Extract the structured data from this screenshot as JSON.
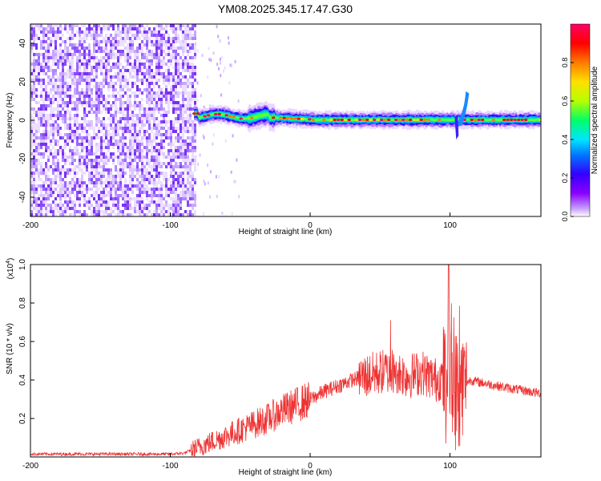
{
  "title": "YM08.2025.345.17.47.G30",
  "chart_data": [
    {
      "type": "heatmap",
      "xlabel": "Height of straight line (km)",
      "ylabel": "Frequency (Hz)",
      "xlim": [
        -200,
        165
      ],
      "ylim": [
        -50,
        50
      ],
      "xticks": [
        -200,
        -100,
        0,
        100
      ],
      "yticks": [
        -40,
        -20,
        0,
        20,
        40
      ],
      "colorbar": {
        "label": "Normalized spectral amplitude",
        "range": [
          0,
          1
        ],
        "ticks": [
          0.0,
          0.2,
          0.4,
          0.6,
          0.8
        ],
        "tick_labels": [
          "0.0",
          "0.2",
          "0.4",
          "0.6",
          "0.8"
        ],
        "colors": [
          "#ffffff",
          "#8a00ff",
          "#3300ff",
          "#0077ff",
          "#00e5ff",
          "#00ff66",
          "#b5ff00",
          "#ffe000",
          "#ff7a00",
          "#ff0000",
          "#ff0066"
        ]
      },
      "regions": [
        {
          "x_range": [
            -200,
            -83
          ],
          "y_range": [
            -50,
            50
          ],
          "amplitude_range": [
            0.0,
            0.15
          ],
          "description_color": "#8a40ff"
        },
        {
          "x_range": [
            -83,
            165
          ],
          "center_frequency_hz": 0,
          "bandwidth_hz": 8,
          "amplitude_range": [
            0.3,
            1.0
          ]
        }
      ]
    },
    {
      "type": "line",
      "xlabel": "Height of straight line (km)",
      "ylabel": "SNR (10 * v/v)",
      "y_multiplier_label": "(x10",
      "y_multiplier_exp": "4",
      "y_multiplier_close": ")",
      "xlim": [
        -200,
        165
      ],
      "ylim": [
        0,
        1.0
      ],
      "xticks": [
        -200,
        -100,
        0,
        100
      ],
      "yticks": [
        0.2,
        0.4,
        0.6,
        0.8,
        1.0
      ],
      "line_color": "#ee3333",
      "series": [
        {
          "x": [
            -200,
            -150,
            -100,
            -90,
            -80,
            -70,
            -60,
            -50,
            -40,
            -30,
            -20,
            -10,
            0,
            10,
            20,
            30,
            35,
            40,
            50,
            60,
            70,
            80,
            90,
            95,
            100,
            105,
            110,
            115,
            120,
            140,
            165
          ],
          "values": [
            0.015,
            0.015,
            0.015,
            0.02,
            0.05,
            0.08,
            0.11,
            0.14,
            0.17,
            0.2,
            0.24,
            0.27,
            0.3,
            0.34,
            0.37,
            0.4,
            0.41,
            0.42,
            0.44,
            0.45,
            0.42,
            0.44,
            0.4,
            0.42,
            0.4,
            0.38,
            0.38,
            0.4,
            0.39,
            0.36,
            0.33
          ]
        }
      ]
    }
  ]
}
